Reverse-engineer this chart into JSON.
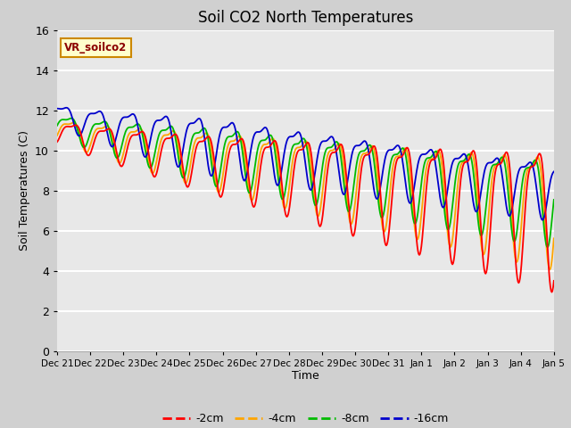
{
  "title": "Soil CO2 North Temperatures",
  "xlabel": "Time",
  "ylabel": "Soil Temperatures (C)",
  "annotation": "VR_soilco2",
  "ylim": [
    0,
    16
  ],
  "fig_facecolor": "#d0d0d0",
  "ax_facecolor": "#e8e8e8",
  "series_colors": [
    "#ff0000",
    "#ffa500",
    "#00bb00",
    "#0000cc"
  ],
  "series_labels": [
    "-2cm",
    "-4cm",
    "-8cm",
    "-16cm"
  ],
  "xtick_labels": [
    "Dec 21",
    "Dec 22",
    "Dec 23",
    "Dec 24",
    "Dec 25",
    "Dec 26",
    "Dec 27",
    "Dec 28",
    "Dec 29",
    "Dec 30",
    "Dec 31",
    "Jan 1",
    "Jan 2",
    "Jan 3",
    "Jan 4",
    "Jan 5"
  ],
  "ytick_labels": [
    0,
    2,
    4,
    6,
    8,
    10,
    12,
    14,
    16
  ]
}
